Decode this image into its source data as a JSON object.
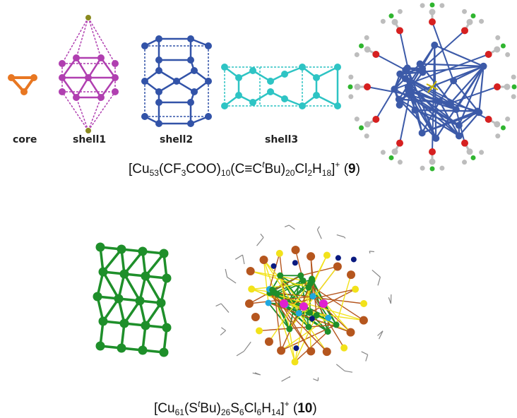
{
  "top": {
    "labels": {
      "core": "core",
      "shell1": "shell1",
      "shell2": "shell2",
      "shell3": "shell3"
    },
    "formula": {
      "p1": "[Cu",
      "s1": "53",
      "p2": "(CF",
      "s2": "3",
      "p3": "COO)",
      "s3": "10",
      "p4": "(C≡C",
      "it": "t",
      "p5": "Bu)",
      "s4": "20",
      "p6": "Cl",
      "s5": "2",
      "p7": "H",
      "s6": "18",
      "p8": "]",
      "sup": "+",
      "p9": " (",
      "num": "9",
      "p10": ")"
    }
  },
  "bottom": {
    "formula": {
      "p1": "[Cu",
      "s1": "61",
      "p2": "(S",
      "it": "t",
      "p3": "Bu)",
      "s2": "26",
      "p4": "S",
      "s3": "6",
      "p5": "Cl",
      "s4": "6",
      "p6": "H",
      "s5": "14",
      "p7": "]",
      "sup": "+",
      "p8": " (",
      "num": "10",
      "p9": ")"
    }
  },
  "colors": {
    "core": "#e87722",
    "shell1": "#b03fb0",
    "shell1_apex": "#8a8a20",
    "shell2": "#3253a8",
    "shell3": "#2ec4c4",
    "green": "#1e8f2a",
    "cu_blue": "#3c5aa8",
    "oxygen": "#d62020",
    "fluorine": "#2fb52f",
    "carbon": "#bdbdbd",
    "sulfur": "#f2e21a",
    "copper_brown": "#b5561e",
    "magenta": "#e020d0",
    "cyan": "#1fa8e0",
    "navy": "#0a1a80"
  }
}
